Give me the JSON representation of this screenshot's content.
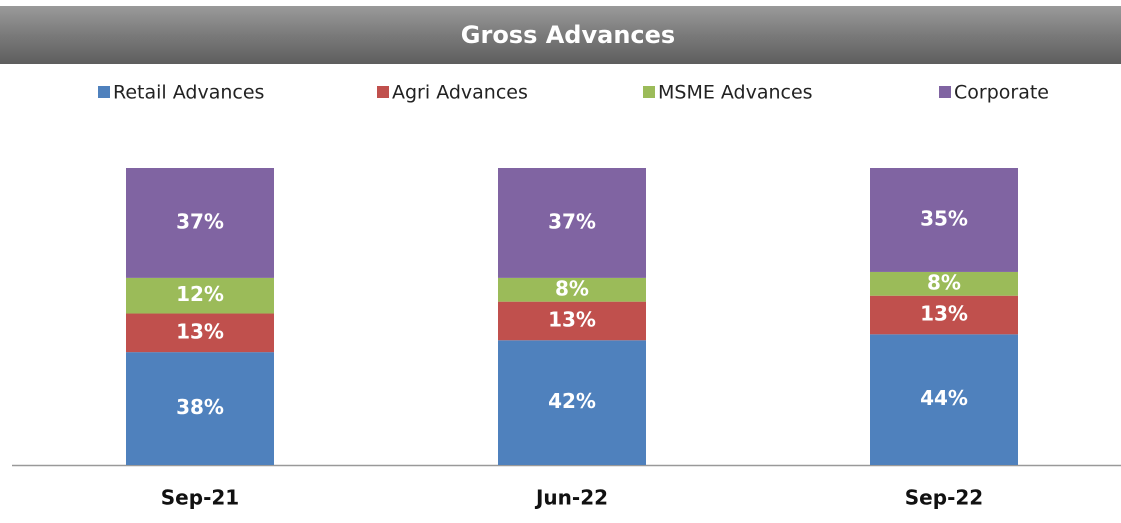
{
  "chart_data": {
    "type": "stacked_bar",
    "title": "Gross Advances",
    "categories": [
      "Sep-21",
      "Jun-22",
      "Sep-22"
    ],
    "series": [
      {
        "name": "Retail Advances",
        "color": "#4f81bd",
        "values": [
          38,
          42,
          44
        ],
        "value_labels": [
          "38%",
          "42%",
          "44%"
        ]
      },
      {
        "name": "Agri Advances",
        "color": "#c0504d",
        "values": [
          13,
          13,
          13
        ],
        "value_labels": [
          "13%",
          "13%",
          "13%"
        ]
      },
      {
        "name": "MSME Advances",
        "color": "#9bbb59",
        "values": [
          12,
          8,
          8
        ],
        "value_labels": [
          "12%",
          "8%",
          "8%"
        ]
      },
      {
        "name": "Corporate",
        "color": "#8064a2",
        "values": [
          37,
          37,
          35
        ],
        "value_labels": [
          "37%",
          "37%",
          "35%"
        ]
      }
    ],
    "ylim": [
      0,
      100
    ],
    "legend": "top"
  }
}
